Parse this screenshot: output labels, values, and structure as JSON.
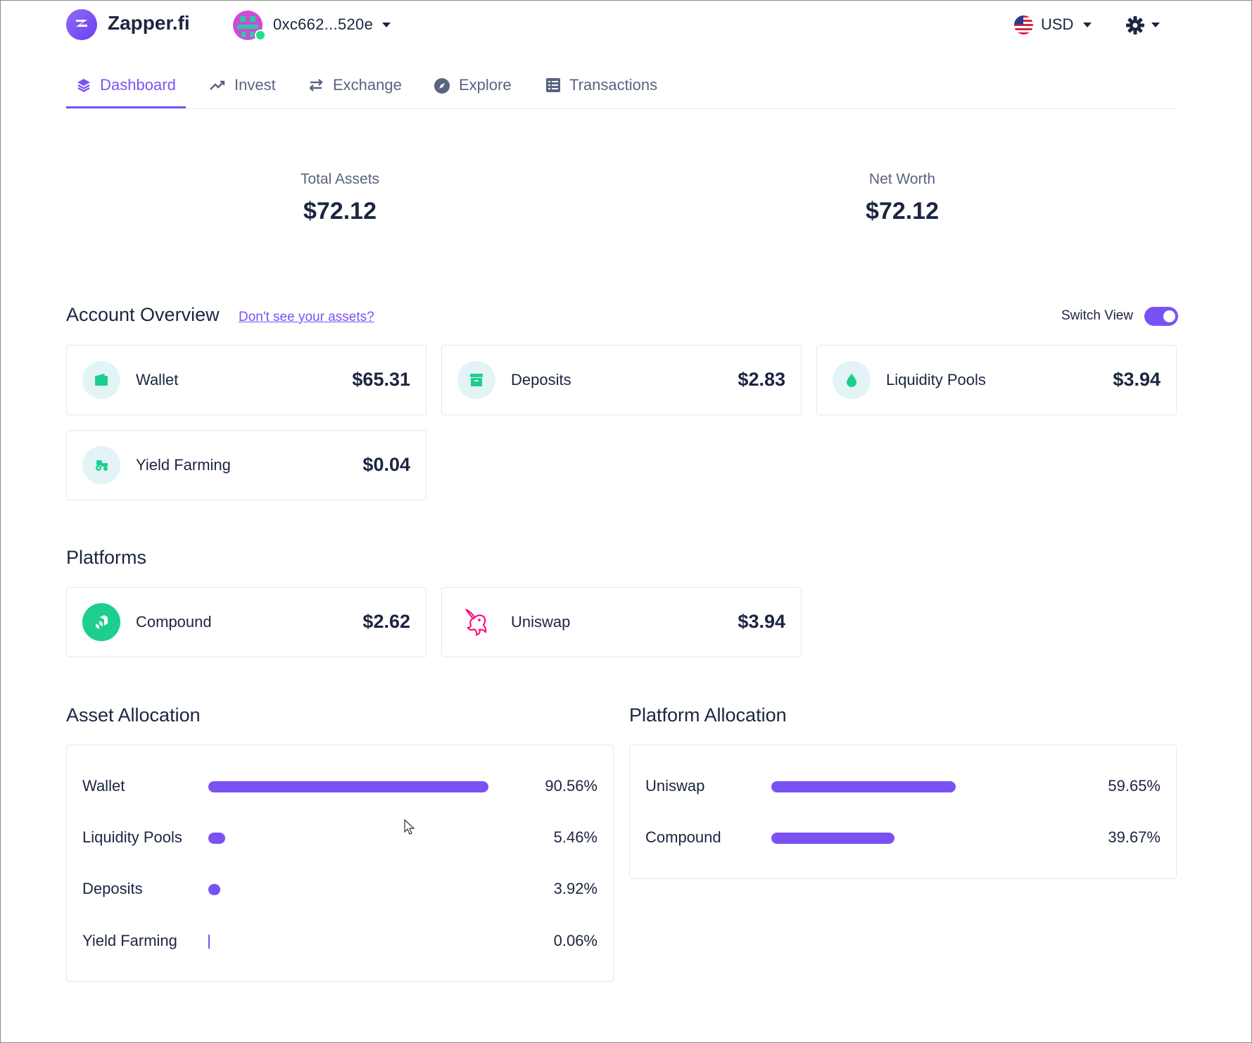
{
  "header": {
    "brand": "Zapper.fi",
    "wallet_address": "0xc662...520e",
    "currency": "USD"
  },
  "tabs": [
    {
      "label": "Dashboard",
      "icon": "layers-icon",
      "active": true
    },
    {
      "label": "Invest",
      "icon": "trending-up-icon"
    },
    {
      "label": "Exchange",
      "icon": "swap-icon"
    },
    {
      "label": "Explore",
      "icon": "compass-icon"
    },
    {
      "label": "Transactions",
      "icon": "list-icon"
    }
  ],
  "totals": {
    "total_assets_label": "Total Assets",
    "total_assets_value": "$72.12",
    "net_worth_label": "Net Worth",
    "net_worth_value": "$72.12"
  },
  "account_overview": {
    "title": "Account Overview",
    "help_link": "Don't see your assets?",
    "switch_view_label": "Switch View",
    "switch_view_on": true,
    "cards": [
      {
        "label": "Wallet",
        "value": "$65.31",
        "icon": "wallet-icon"
      },
      {
        "label": "Deposits",
        "value": "$2.83",
        "icon": "archive-icon"
      },
      {
        "label": "Liquidity Pools",
        "value": "$3.94",
        "icon": "droplet-icon"
      },
      {
        "label": "Yield Farming",
        "value": "$0.04",
        "icon": "tractor-icon"
      }
    ]
  },
  "platforms": {
    "title": "Platforms",
    "cards": [
      {
        "label": "Compound",
        "value": "$2.62",
        "icon": "compound-logo-icon"
      },
      {
        "label": "Uniswap",
        "value": "$3.94",
        "icon": "uniswap-unicorn-icon"
      }
    ]
  },
  "asset_allocation": {
    "title": "Asset Allocation",
    "rows": [
      {
        "label": "Wallet",
        "percent": "90.56%",
        "fraction": 0.9056
      },
      {
        "label": "Liquidity Pools",
        "percent": "5.46%",
        "fraction": 0.0546
      },
      {
        "label": "Deposits",
        "percent": "3.92%",
        "fraction": 0.0392
      },
      {
        "label": "Yield Farming",
        "percent": "0.06%",
        "fraction": 0.0006
      }
    ]
  },
  "platform_allocation": {
    "title": "Platform Allocation",
    "rows": [
      {
        "label": "Uniswap",
        "percent": "59.65%",
        "fraction": 0.5965
      },
      {
        "label": "Compound",
        "percent": "39.67%",
        "fraction": 0.3967
      }
    ]
  },
  "colors": {
    "accent": "#7a52f4",
    "text": "#1c2541",
    "muted": "#5a6380",
    "icon_teal": "#1ccf8f"
  }
}
